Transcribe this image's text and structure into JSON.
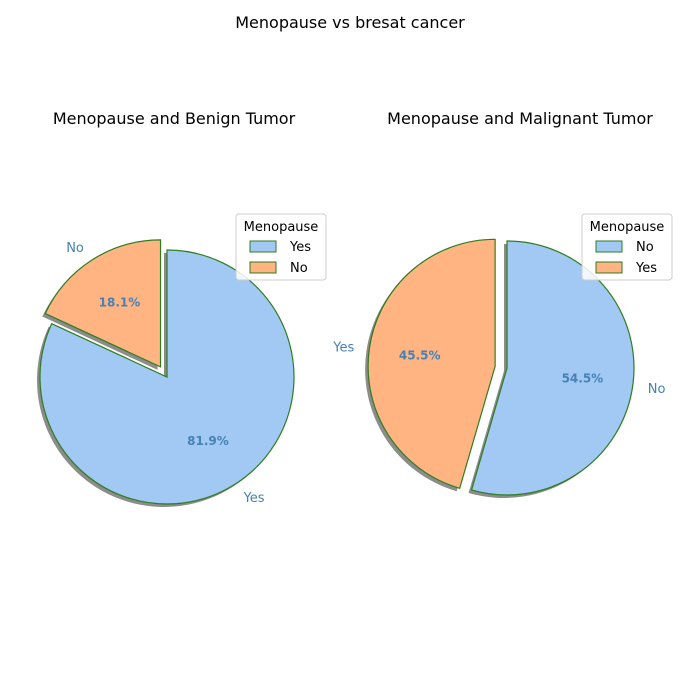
{
  "suptitle": "Menopause vs bresat cancer",
  "chart_data": [
    {
      "type": "pie",
      "title": "Menopause and Benign Tumor",
      "slices": [
        {
          "label": "Yes",
          "value": 81.9,
          "pct_label": "81.9%",
          "color": "#a1c9f4",
          "explode": false
        },
        {
          "label": "No",
          "value": 18.1,
          "pct_label": "18.1%",
          "color": "#ffb482",
          "explode": true
        }
      ],
      "legend": {
        "title": "Menopause",
        "entries": [
          "Yes",
          "No"
        ],
        "placement": "upper-right"
      },
      "start_angle_deg": 90,
      "shadow": true,
      "edge_color": "#2e7d1f",
      "label_color": "#4682b4"
    },
    {
      "type": "pie",
      "title": "Menopause and Malignant Tumor",
      "slices": [
        {
          "label": "No",
          "value": 54.5,
          "pct_label": "54.5%",
          "color": "#a1c9f4",
          "explode": false
        },
        {
          "label": "Yes",
          "value": 45.5,
          "pct_label": "45.5%",
          "color": "#ffb482",
          "explode": true
        }
      ],
      "legend": {
        "title": "Menopause",
        "entries": [
          "No",
          "Yes"
        ],
        "placement": "upper-right"
      },
      "start_angle_deg": 90,
      "shadow": true,
      "edge_color": "#2e7d1f",
      "label_color": "#4682b4"
    }
  ]
}
